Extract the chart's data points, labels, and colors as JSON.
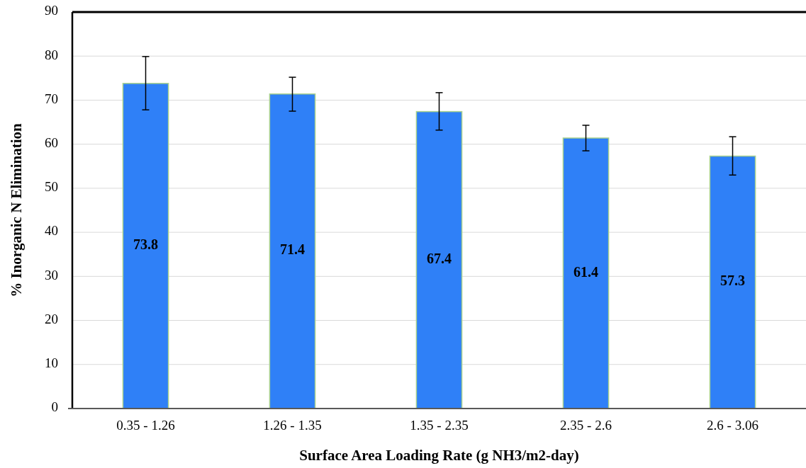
{
  "chart_data": {
    "type": "bar",
    "xlabel": "Surface Area Loading Rate (g NH3/m2-day)",
    "ylabel": "% Inorganic N Elimination",
    "categories": [
      "0.35 - 1.26",
      "1.26 - 1.35",
      "1.35 - 2.35",
      "2.35 - 2.6",
      "2.6 - 3.06"
    ],
    "values": [
      73.8,
      71.4,
      67.4,
      61.4,
      57.3
    ],
    "color": "#2f80f7",
    "errors": [
      [
        67.8,
        79.9
      ],
      [
        67.5,
        75.2
      ],
      [
        63.2,
        71.7
      ],
      [
        58.5,
        64.3
      ],
      [
        53.0,
        61.7
      ]
    ],
    "data_labels": true,
    "ylim": [
      0,
      90
    ],
    "yticks": [
      0,
      10,
      20,
      30,
      40,
      50,
      60,
      70,
      80,
      90
    ],
    "grid": "y"
  }
}
